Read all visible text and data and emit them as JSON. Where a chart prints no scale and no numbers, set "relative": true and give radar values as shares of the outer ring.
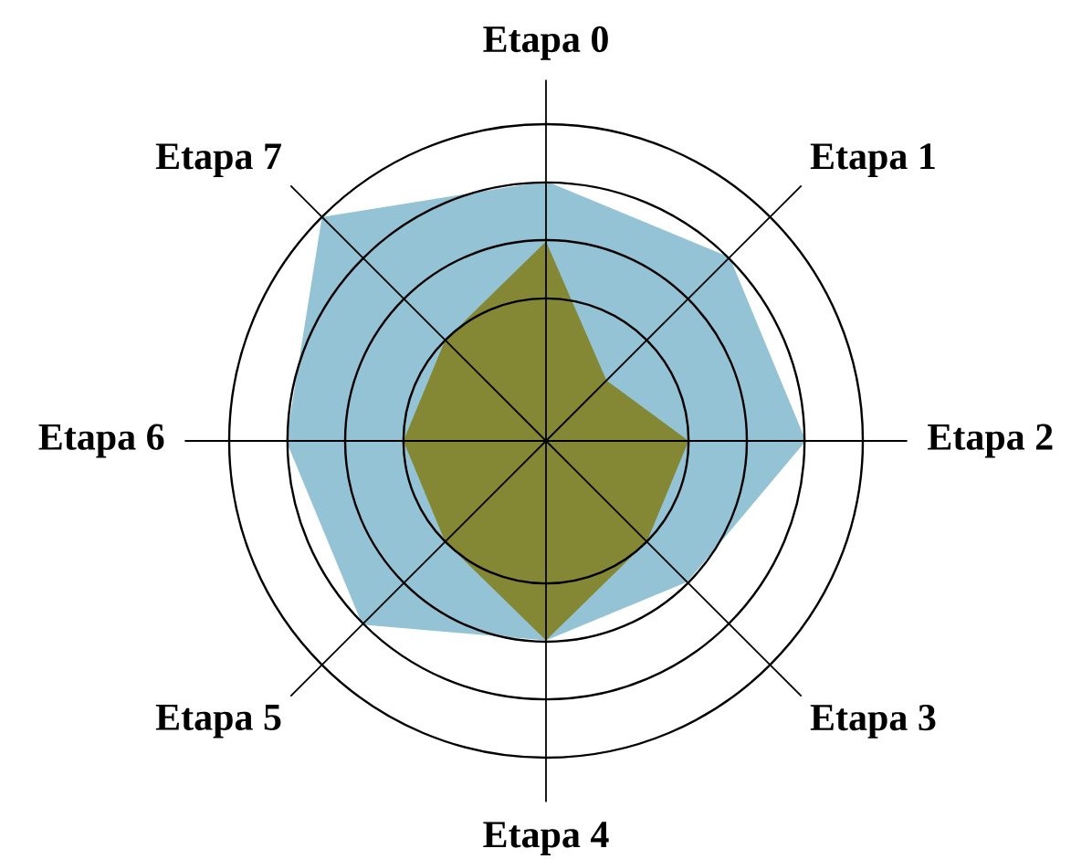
{
  "chart_data": {
    "type": "radar",
    "relative": true,
    "categories": [
      "Etapa 0",
      "Etapa 1",
      "Etapa 2",
      "Etapa 3",
      "Etapa 4",
      "Etapa 5",
      "Etapa 6",
      "Etapa 7"
    ],
    "series": [
      {
        "type": "area",
        "color": "#93c3d4",
        "values": [
          0.82,
          0.82,
          0.82,
          0.63,
          0.63,
          0.82,
          0.82,
          1.0
        ]
      },
      {
        "type": "area",
        "color": "#848834",
        "values": [
          0.63,
          0.27,
          0.45,
          0.45,
          0.63,
          0.45,
          0.45,
          0.45
        ]
      }
    ],
    "grid": true
  }
}
